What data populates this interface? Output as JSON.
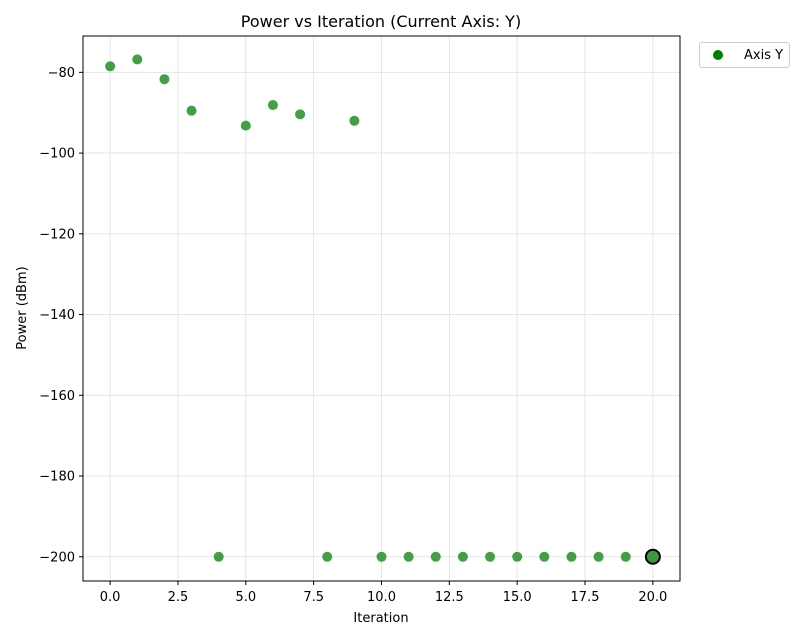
{
  "chart_data": {
    "type": "scatter",
    "title": "Power vs Iteration (Current Axis: Y)",
    "xlabel": "Iteration",
    "ylabel": "Power (dBm)",
    "xlim": [
      -1,
      21
    ],
    "ylim": [
      -206,
      -71
    ],
    "x_ticks": [
      0.0,
      2.5,
      5.0,
      7.5,
      10.0,
      12.5,
      15.0,
      17.5,
      20.0
    ],
    "x_tick_labels": [
      "0.0",
      "2.5",
      "5.0",
      "7.5",
      "10.0",
      "12.5",
      "15.0",
      "17.5",
      "20.0"
    ],
    "y_ticks": [
      -80,
      -100,
      -120,
      -140,
      -160,
      -180,
      -200
    ],
    "y_tick_labels": [
      "−80",
      "−100",
      "−120",
      "−140",
      "−160",
      "−180",
      "−200"
    ],
    "grid": true,
    "legend_position": "outside-top-right",
    "series": [
      {
        "name": "Axis Y",
        "color": "#008000",
        "marker_color": "#3a9a3a",
        "x": [
          0,
          1,
          2,
          3,
          4,
          5,
          6,
          7,
          8,
          9,
          10,
          11,
          12,
          13,
          14,
          15,
          16,
          17,
          18,
          19,
          20
        ],
        "y": [
          -78.5,
          -76.8,
          -81.7,
          -89.5,
          -200,
          -93.2,
          -88.1,
          -90.4,
          -200,
          -92.0,
          -200,
          -200,
          -200,
          -200,
          -200,
          -200,
          -200,
          -200,
          -200,
          -200,
          -200
        ]
      }
    ],
    "highlight_point": {
      "x": 20,
      "y": -200
    }
  }
}
